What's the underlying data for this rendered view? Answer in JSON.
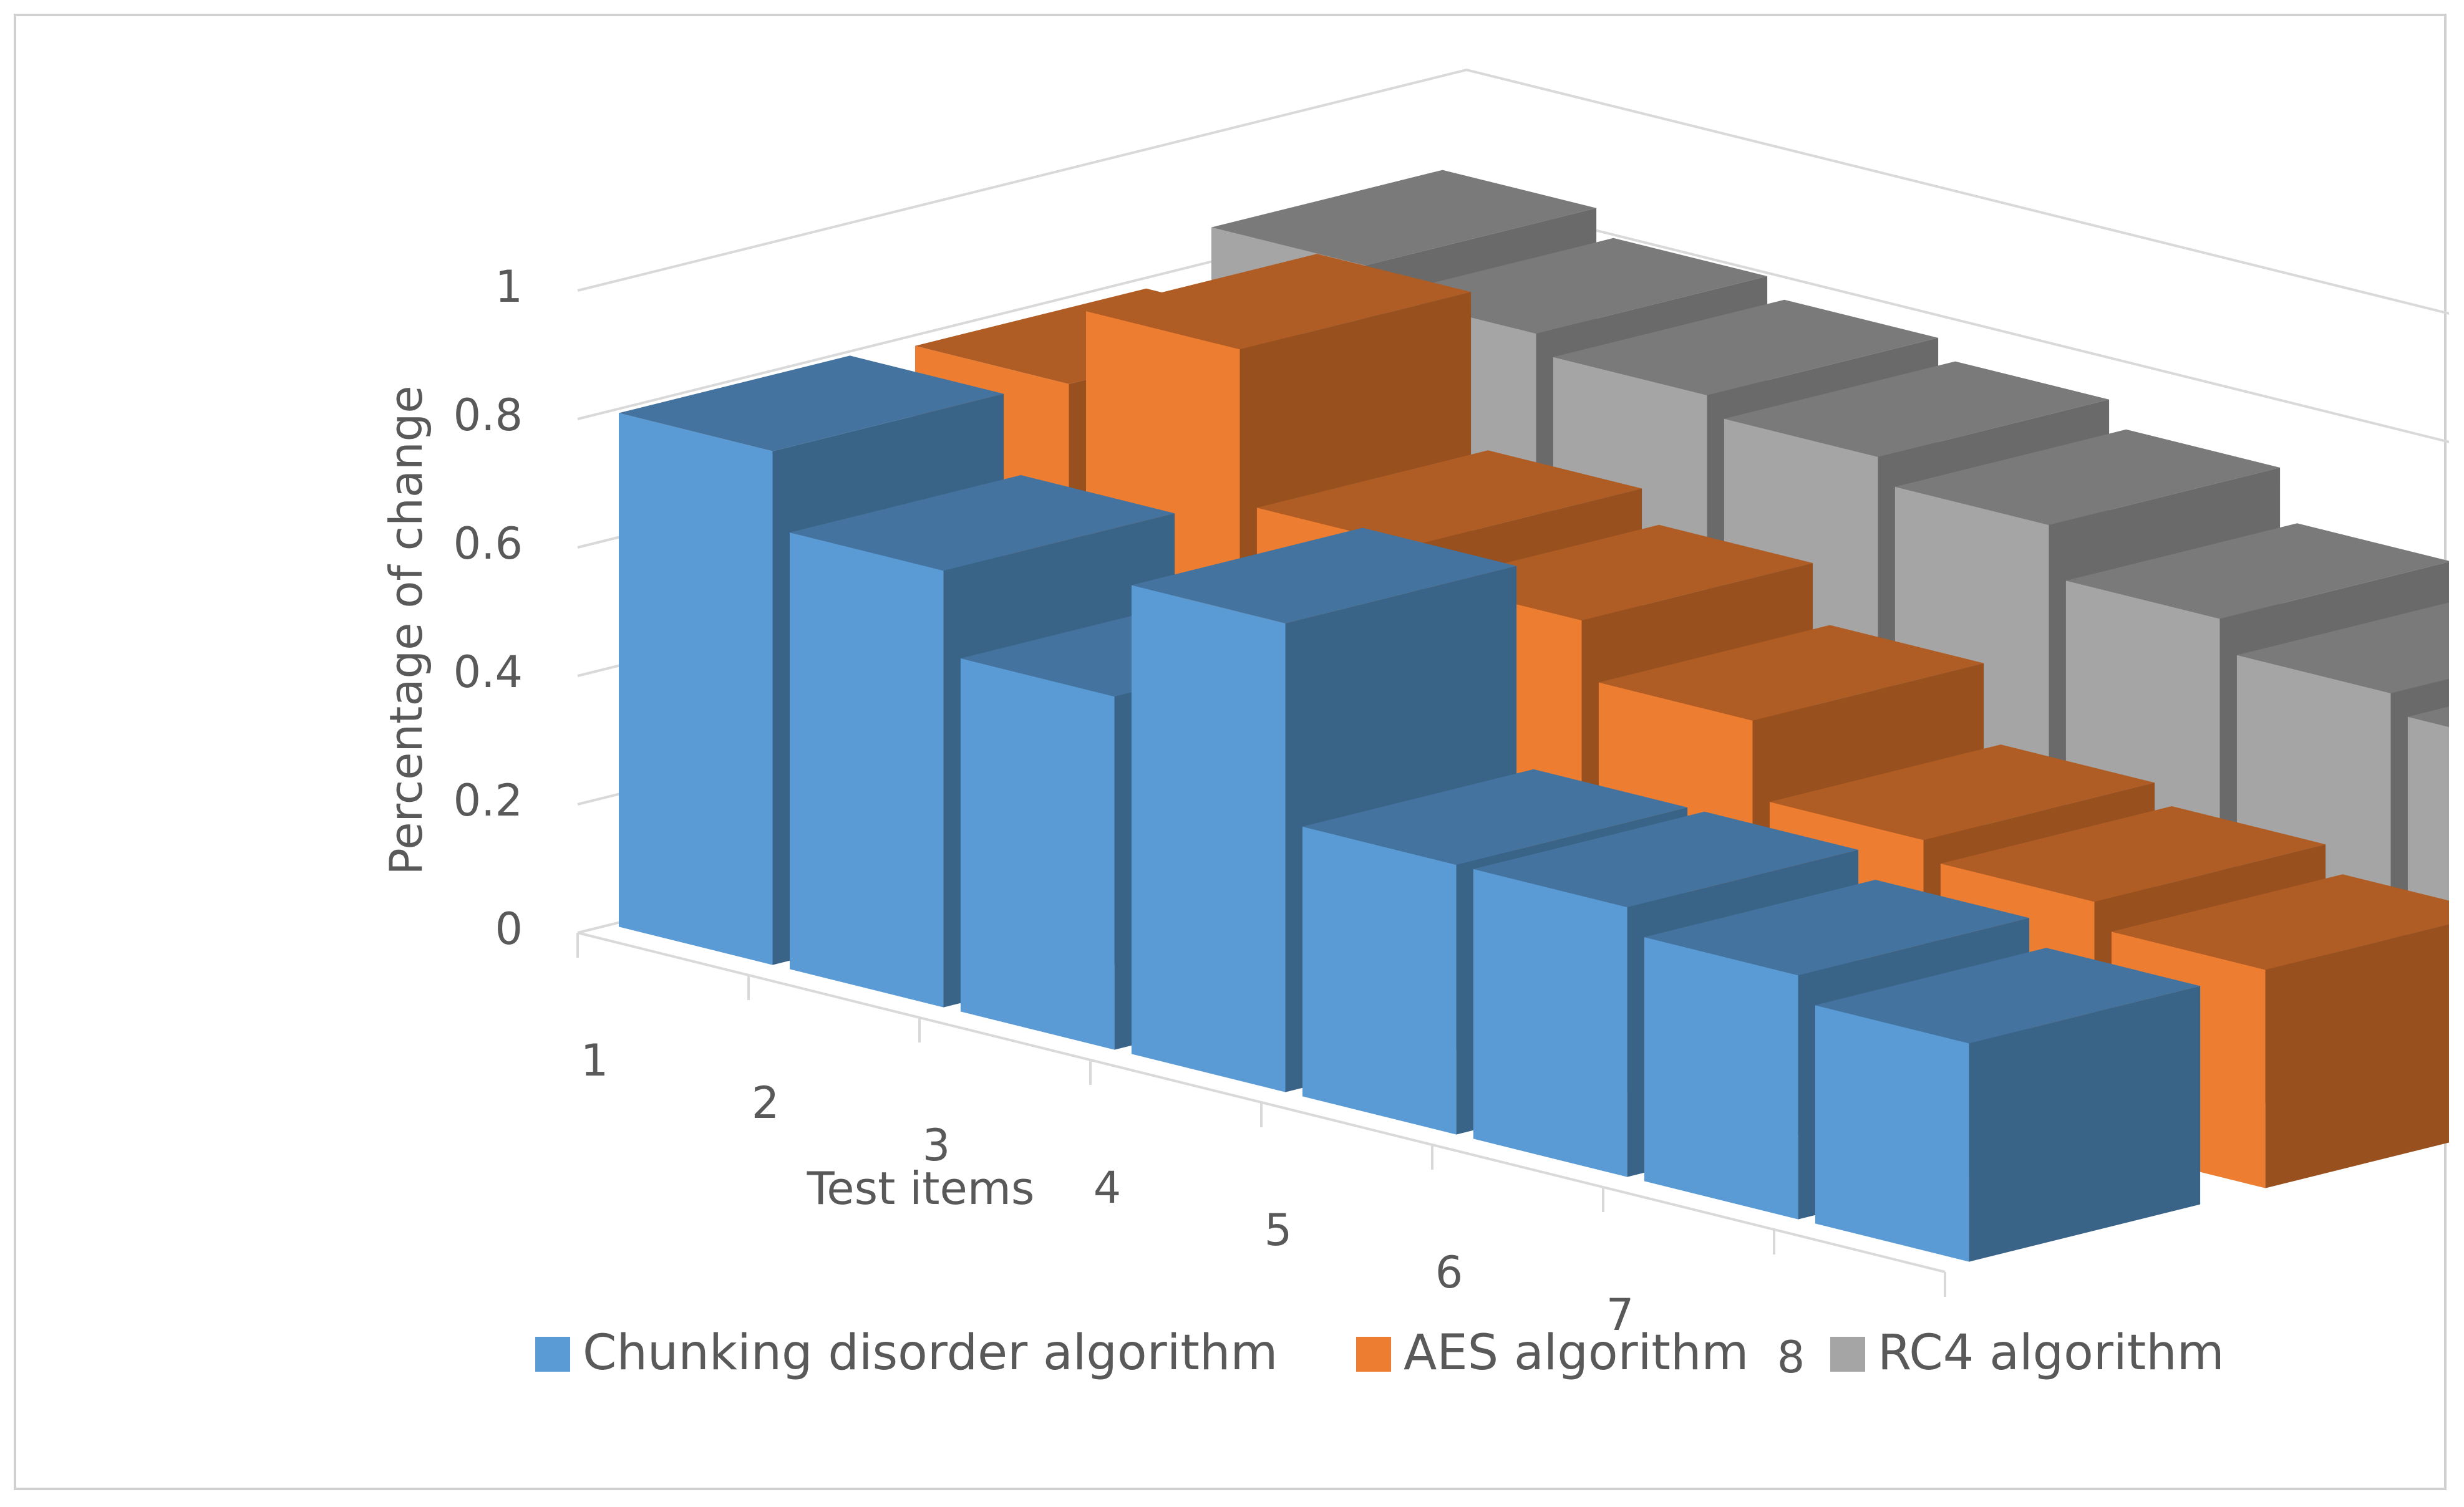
{
  "chart_data": {
    "type": "bar",
    "variant": "3d-column",
    "title": "",
    "xlabel": "Test items",
    "ylabel": "Percentage of change",
    "ylim": [
      0,
      1
    ],
    "y_ticks": [
      "0",
      "0.2",
      "0.4",
      "0.6",
      "0.8",
      "1"
    ],
    "categories": [
      "1",
      "2",
      "3",
      "4",
      "5",
      "6",
      "7",
      "8"
    ],
    "series": [
      {
        "name": "Chunking disorder algorithm",
        "color": "#5b9bd5",
        "values": [
          0.8,
          0.68,
          0.55,
          0.73,
          0.42,
          0.42,
          0.38,
          0.34
        ]
      },
      {
        "name": "AES algorithm",
        "color": "#ed7d31",
        "values": [
          0.79,
          0.91,
          0.67,
          0.62,
          0.53,
          0.41,
          0.38,
          0.34
        ]
      },
      {
        "name": "RC4 algorithm",
        "color": "#a5a5a5",
        "values": [
          0.86,
          0.82,
          0.79,
          0.76,
          0.72,
          0.64,
          0.59,
          0.56
        ]
      }
    ],
    "legend_position": "bottom",
    "grid": true
  }
}
